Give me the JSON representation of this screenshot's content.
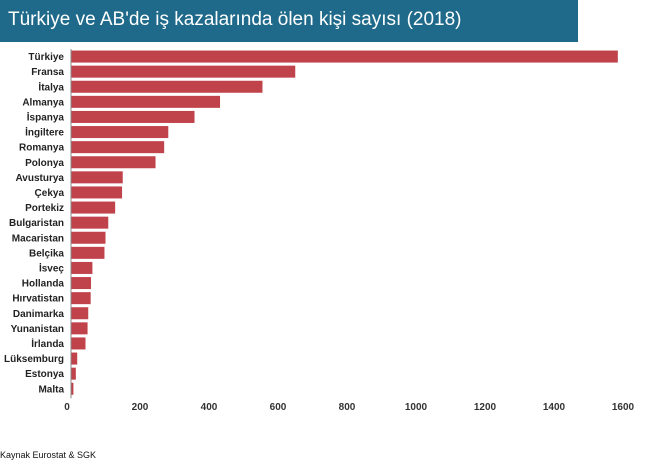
{
  "header": {
    "title": "Türkiye ve AB'de iş kazalarında ölen kişi sayısı (2018)"
  },
  "footer": {
    "source": "Kaynak Eurostat & SGK"
  },
  "colors": {
    "bar": "#c0424a",
    "title_bg": "#1f6a8a",
    "axis": "#888888"
  },
  "chart_data": {
    "type": "bar",
    "orientation": "horizontal",
    "title": "Türkiye ve AB'de iş kazalarında ölen kişi sayısı (2018)",
    "categories": [
      "Türkiye",
      "Fransa",
      "İtalya",
      "Almanya",
      "İspanya",
      "İngiltere",
      "Romanya",
      "Polonya",
      "Avusturya",
      "Çekya",
      "Portekiz",
      "Bulgaristan",
      "Macaristan",
      "Belçika",
      "İsveç",
      "Hollanda",
      "Hırvatistan",
      "Danimarka",
      "Yunanistan",
      "İrlanda",
      "Lüksemburg",
      "Estonya",
      "Malta"
    ],
    "values": [
      1585,
      650,
      555,
      432,
      358,
      282,
      270,
      245,
      150,
      148,
      128,
      108,
      100,
      97,
      62,
      58,
      57,
      50,
      48,
      42,
      18,
      14,
      7
    ],
    "xlim": [
      0,
      1600
    ],
    "xticks": [
      0,
      200,
      400,
      600,
      800,
      1000,
      1200,
      1400,
      1600
    ],
    "xlabel": "",
    "ylabel": "",
    "grid": false,
    "legend": "none"
  }
}
